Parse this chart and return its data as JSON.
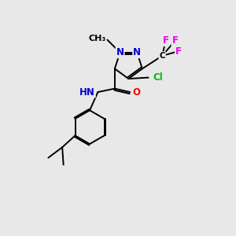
{
  "background_color": "#e8e8e8",
  "bond_color": "#000000",
  "atom_colors": {
    "N": "#0000cc",
    "O": "#ff0000",
    "Cl": "#00bb00",
    "F": "#ee00ee",
    "C": "#000000"
  },
  "lw": 1.4,
  "fs": 8.5
}
